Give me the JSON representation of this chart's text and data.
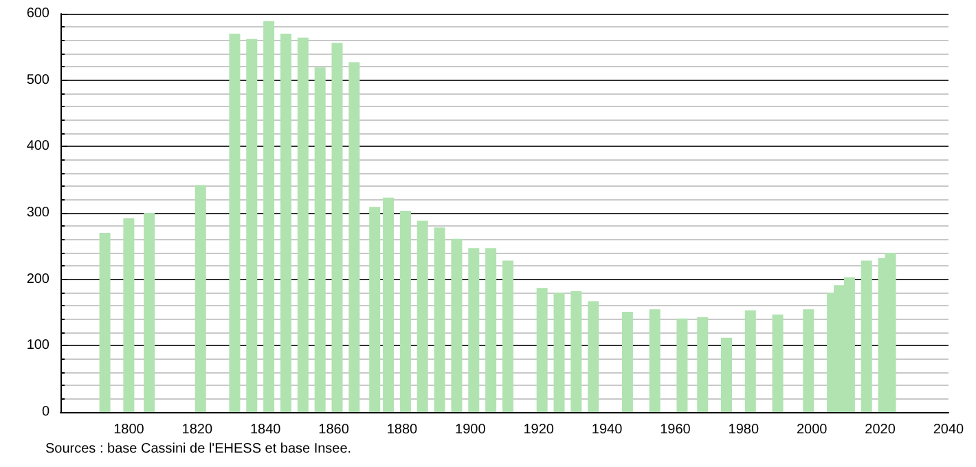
{
  "chart_data": {
    "type": "bar",
    "annotations": [
      "Sources : base Cassini de l'EHESS et base Insee."
    ],
    "x": [
      1793,
      1800,
      1806,
      1821,
      1831,
      1836,
      1841,
      1846,
      1851,
      1856,
      1861,
      1866,
      1872,
      1876,
      1881,
      1886,
      1891,
      1896,
      1901,
      1906,
      1911,
      1921,
      1926,
      1931,
      1936,
      1946,
      1954,
      1962,
      1968,
      1975,
      1982,
      1990,
      1999,
      2006,
      2008,
      2011,
      2016,
      2021,
      2023
    ],
    "values": [
      270,
      292,
      300,
      342,
      570,
      562,
      589,
      570,
      564,
      519,
      556,
      527,
      309,
      323,
      303,
      288,
      278,
      261,
      247,
      247,
      228,
      187,
      180,
      182,
      167,
      151,
      155,
      141,
      143,
      112,
      153,
      147,
      155,
      180,
      191,
      203,
      228,
      232,
      240
    ],
    "color": "#b0e3b0",
    "xlim": [
      1780,
      2040
    ],
    "xticks": [
      1800,
      1820,
      1840,
      1860,
      1880,
      1900,
      1920,
      1940,
      1960,
      1980,
      2000,
      2020,
      2040
    ],
    "ylim": [
      0,
      600
    ],
    "yticks": [
      0,
      100,
      200,
      300,
      400,
      500,
      600
    ],
    "grid": "y"
  }
}
